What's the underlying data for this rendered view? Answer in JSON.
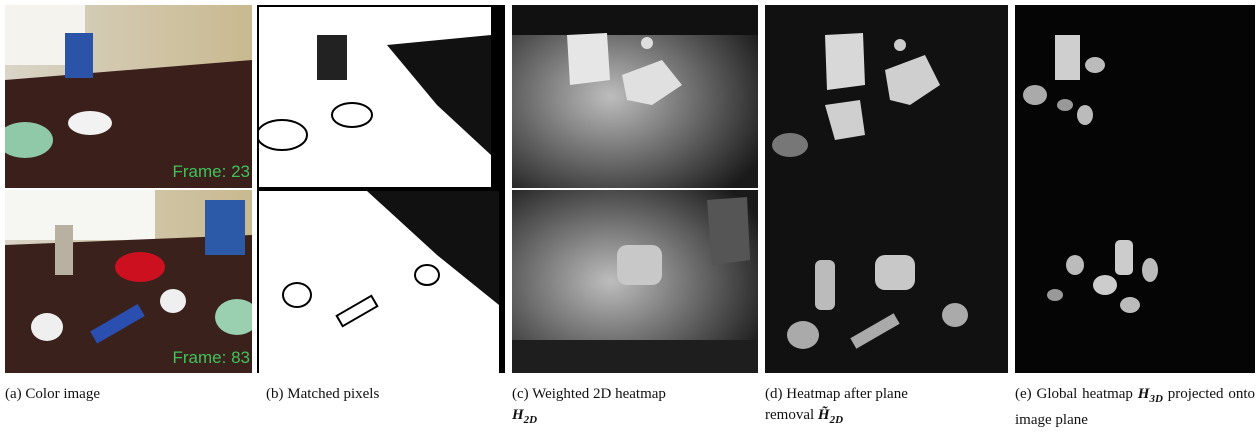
{
  "panels": [
    {
      "label": "(a)",
      "caption": "Color image",
      "overlays": [
        "Frame: 23",
        "Frame: 83"
      ]
    },
    {
      "label": "(b)",
      "caption": "Matched pixels"
    },
    {
      "label": "(c)",
      "caption": "Weighted 2D heatmap",
      "math": "H",
      "sub": "2D"
    },
    {
      "label": "(d)",
      "caption": "Heatmap after plane removal",
      "math": "H̃",
      "sub": "2D"
    },
    {
      "label": "(e)",
      "caption": "Global heatmap",
      "math": "H",
      "sub": "3D",
      "caption_after": "projected onto image plane"
    }
  ]
}
